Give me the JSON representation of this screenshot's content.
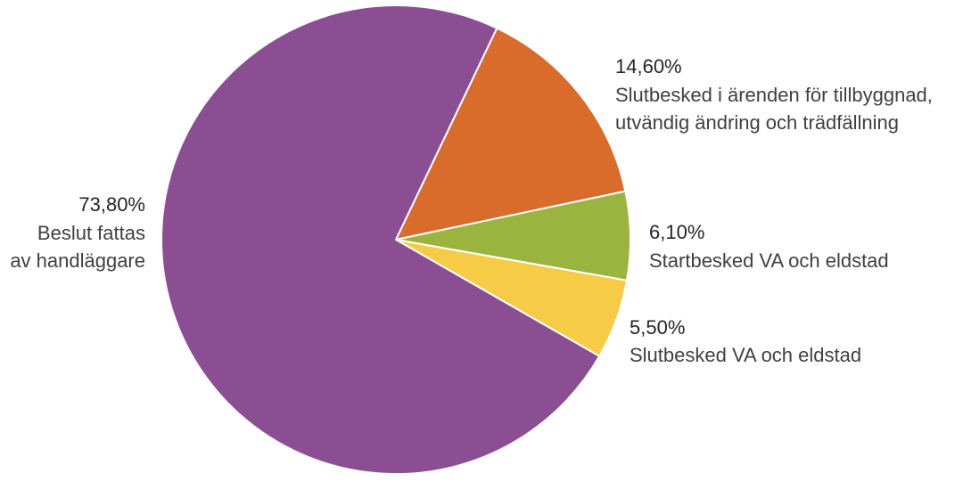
{
  "chart_data": {
    "type": "pie",
    "slices": [
      {
        "value": 14.6,
        "percent_label": "14,60%",
        "label_lines": [
          "Slutbesked i ärenden för tillbyggnad,",
          "utvändig ändring och trädfällning"
        ],
        "color": "#D96B2B"
      },
      {
        "value": 6.1,
        "percent_label": "6,10%",
        "label_lines": [
          "Startbesked VA och eldstad"
        ],
        "color": "#9BB33F"
      },
      {
        "value": 5.5,
        "percent_label": "5,50%",
        "label_lines": [
          "Slutbesked VA och eldstad"
        ],
        "color": "#F6CB45"
      },
      {
        "value": 73.8,
        "percent_label": "73,80%",
        "label_lines": [
          "Beslut fattas",
          "av handläggare"
        ],
        "color": "#8B4E92"
      }
    ]
  }
}
